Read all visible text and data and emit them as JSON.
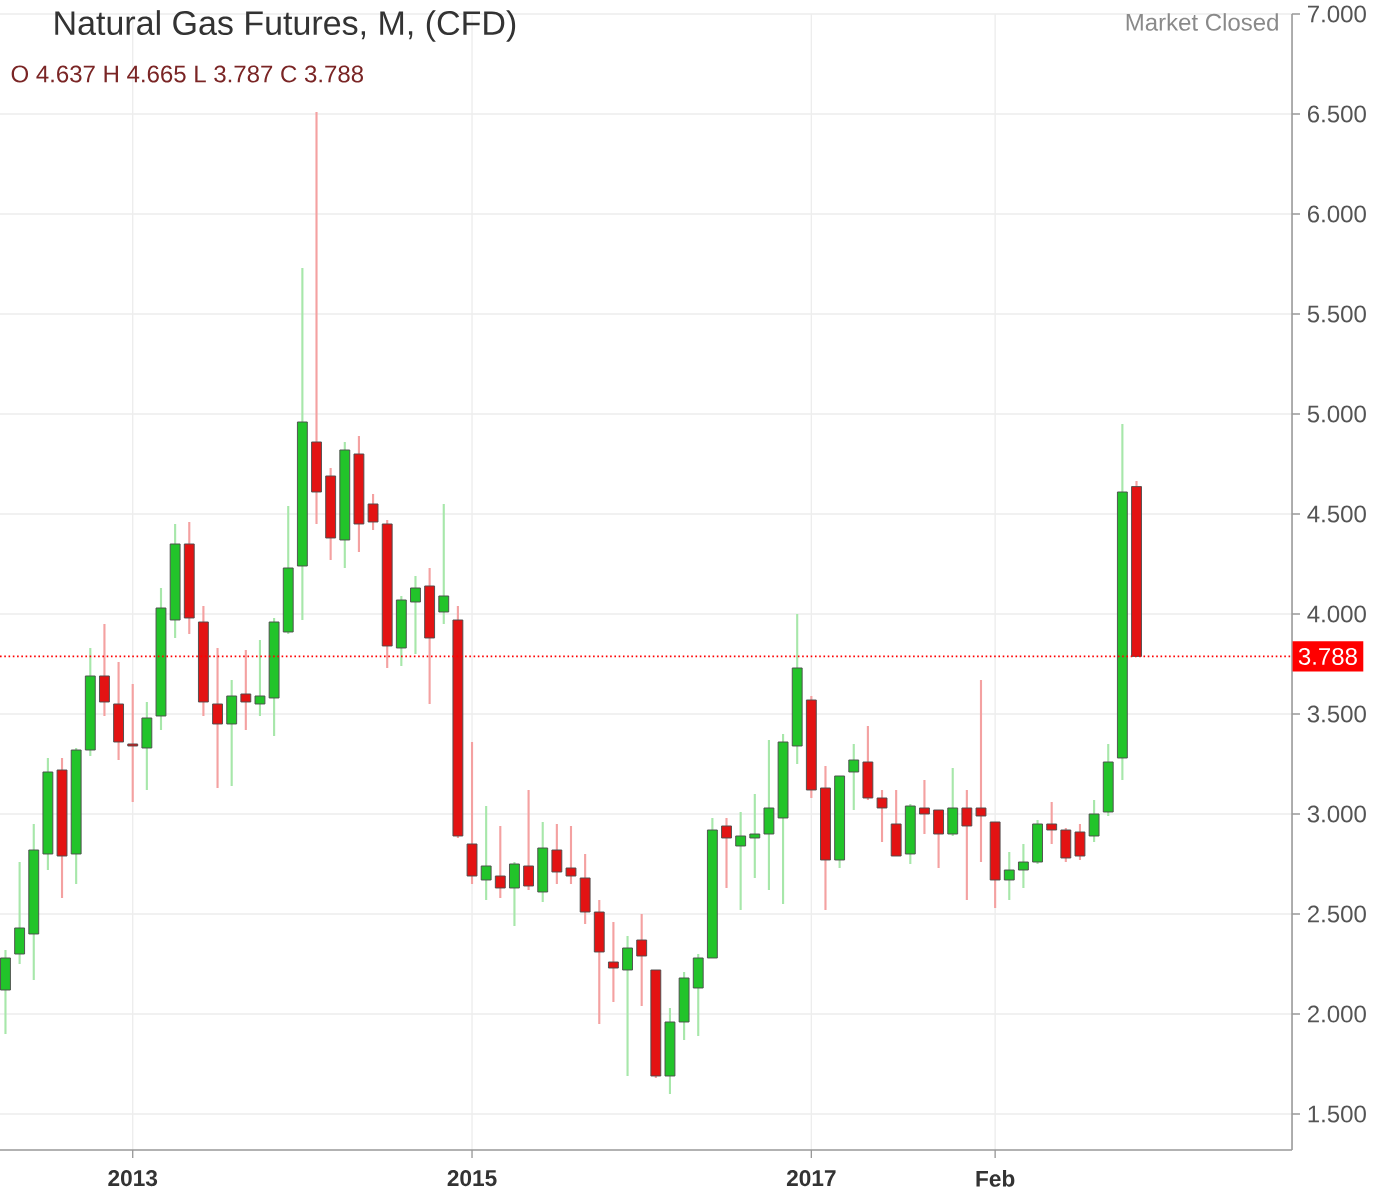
{
  "chart_data": {
    "type": "candlestick",
    "title": "Natural Gas Futures, M, (CFD)",
    "annotations": [
      "O 4.637 H 4.665 L 3.787 C 3.788",
      "Market Closed"
    ],
    "x": [
      "2012-04",
      "2012-05",
      "2012-06",
      "2012-07",
      "2012-08",
      "2012-09",
      "2012-10",
      "2012-11",
      "2012-12",
      "2013-01",
      "2013-02",
      "2013-03",
      "2013-04",
      "2013-05",
      "2013-06",
      "2013-07",
      "2013-08",
      "2013-09",
      "2013-10",
      "2013-11",
      "2013-12",
      "2014-01",
      "2014-02",
      "2014-03",
      "2014-04",
      "2014-05",
      "2014-06",
      "2014-07",
      "2014-08",
      "2014-09",
      "2014-10",
      "2014-11",
      "2014-12",
      "2015-01",
      "2015-02",
      "2015-03",
      "2015-04",
      "2015-05",
      "2015-06",
      "2015-07",
      "2015-08",
      "2015-09",
      "2015-10",
      "2015-11",
      "2015-12",
      "2016-01",
      "2016-02",
      "2016-03",
      "2016-04",
      "2016-05",
      "2016-06",
      "2016-07",
      "2016-08",
      "2016-09",
      "2016-10",
      "2016-11",
      "2016-12",
      "2017-01",
      "2017-02",
      "2017-03",
      "2017-04",
      "2017-05",
      "2017-06",
      "2017-07",
      "2017-08",
      "2017-09",
      "2017-10",
      "2017-11",
      "2017-12",
      "2018-01",
      "2018-02",
      "2018-03",
      "2018-04",
      "2018-05",
      "2018-06",
      "2018-07",
      "2018-08",
      "2018-09",
      "2018-10",
      "2018-11",
      "2018-12"
    ],
    "ohlc": [
      [
        2.12,
        2.32,
        1.9,
        2.28
      ],
      [
        2.3,
        2.76,
        2.25,
        2.43
      ],
      [
        2.4,
        2.95,
        2.17,
        2.82
      ],
      [
        2.8,
        3.28,
        2.72,
        3.21
      ],
      [
        3.22,
        3.28,
        2.58,
        2.79
      ],
      [
        2.8,
        3.33,
        2.65,
        3.32
      ],
      [
        3.32,
        3.83,
        3.29,
        3.69
      ],
      [
        3.69,
        3.95,
        3.49,
        3.56
      ],
      [
        3.55,
        3.76,
        3.27,
        3.36
      ],
      [
        3.35,
        3.65,
        3.06,
        3.34
      ],
      [
        3.33,
        3.56,
        3.12,
        3.48
      ],
      [
        3.49,
        4.13,
        3.42,
        4.03
      ],
      [
        3.97,
        4.45,
        3.88,
        4.35
      ],
      [
        4.35,
        4.46,
        3.9,
        3.98
      ],
      [
        3.96,
        4.04,
        3.49,
        3.56
      ],
      [
        3.55,
        3.83,
        3.13,
        3.45
      ],
      [
        3.45,
        3.67,
        3.14,
        3.59
      ],
      [
        3.6,
        3.82,
        3.42,
        3.56
      ],
      [
        3.55,
        3.87,
        3.49,
        3.59
      ],
      [
        3.58,
        3.98,
        3.39,
        3.96
      ],
      [
        3.91,
        4.54,
        3.9,
        4.23
      ],
      [
        4.24,
        5.73,
        3.97,
        4.96
      ],
      [
        4.86,
        6.51,
        4.45,
        4.61
      ],
      [
        4.69,
        4.73,
        4.27,
        4.38
      ],
      [
        4.37,
        4.86,
        4.23,
        4.82
      ],
      [
        4.8,
        4.89,
        4.31,
        4.45
      ],
      [
        4.55,
        4.6,
        4.42,
        4.46
      ],
      [
        4.45,
        4.47,
        3.73,
        3.84
      ],
      [
        3.83,
        4.09,
        3.74,
        4.07
      ],
      [
        4.06,
        4.19,
        3.8,
        4.13
      ],
      [
        4.14,
        4.23,
        3.55,
        3.88
      ],
      [
        4.01,
        4.55,
        3.95,
        4.09
      ],
      [
        3.97,
        4.04,
        2.88,
        2.89
      ],
      [
        2.85,
        3.36,
        2.65,
        2.69
      ],
      [
        2.67,
        3.04,
        2.57,
        2.74
      ],
      [
        2.69,
        2.94,
        2.58,
        2.63
      ],
      [
        2.63,
        2.76,
        2.44,
        2.75
      ],
      [
        2.74,
        3.12,
        2.62,
        2.64
      ],
      [
        2.61,
        2.96,
        2.56,
        2.83
      ],
      [
        2.82,
        2.95,
        2.65,
        2.71
      ],
      [
        2.73,
        2.94,
        2.65,
        2.69
      ],
      [
        2.68,
        2.8,
        2.45,
        2.51
      ],
      [
        2.51,
        2.57,
        1.95,
        2.31
      ],
      [
        2.26,
        2.46,
        2.06,
        2.23
      ],
      [
        2.22,
        2.39,
        1.69,
        2.33
      ],
      [
        2.37,
        2.5,
        2.04,
        2.29
      ],
      [
        2.22,
        2.22,
        1.68,
        1.69
      ],
      [
        1.69,
        2.03,
        1.6,
        1.96
      ],
      [
        1.96,
        2.21,
        1.87,
        2.18
      ],
      [
        2.13,
        2.3,
        1.89,
        2.28
      ],
      [
        2.28,
        2.98,
        2.28,
        2.92
      ],
      [
        2.94,
        2.98,
        2.63,
        2.88
      ],
      [
        2.84,
        3.01,
        2.52,
        2.89
      ],
      [
        2.88,
        3.1,
        2.68,
        2.9
      ],
      [
        2.9,
        3.37,
        2.62,
        3.03
      ],
      [
        2.98,
        3.4,
        2.55,
        3.36
      ],
      [
        3.34,
        4.0,
        3.25,
        3.73
      ],
      [
        3.57,
        3.59,
        3.08,
        3.12
      ],
      [
        3.13,
        3.24,
        2.52,
        2.77
      ],
      [
        2.77,
        3.19,
        2.73,
        3.19
      ],
      [
        3.21,
        3.35,
        3.02,
        3.27
      ],
      [
        3.26,
        3.44,
        3.07,
        3.08
      ],
      [
        3.08,
        3.12,
        2.86,
        3.03
      ],
      [
        2.95,
        3.12,
        2.79,
        2.79
      ],
      [
        2.8,
        3.05,
        2.75,
        3.04
      ],
      [
        3.03,
        3.17,
        2.9,
        3.0
      ],
      [
        3.02,
        3.02,
        2.73,
        2.9
      ],
      [
        2.9,
        3.23,
        2.89,
        3.03
      ],
      [
        3.03,
        3.12,
        2.57,
        2.94
      ],
      [
        3.03,
        3.67,
        2.76,
        2.99
      ],
      [
        2.96,
        2.96,
        2.53,
        2.67
      ],
      [
        2.67,
        2.81,
        2.57,
        2.72
      ],
      [
        2.72,
        2.85,
        2.63,
        2.76
      ],
      [
        2.76,
        2.97,
        2.75,
        2.95
      ],
      [
        2.95,
        3.06,
        2.85,
        2.92
      ],
      [
        2.92,
        2.93,
        2.76,
        2.78
      ],
      [
        2.91,
        2.95,
        2.77,
        2.79
      ],
      [
        2.89,
        3.07,
        2.86,
        3.0
      ],
      [
        3.01,
        3.35,
        2.99,
        3.26
      ],
      [
        3.28,
        4.95,
        3.17,
        4.61
      ],
      [
        4.637,
        4.665,
        3.787,
        3.788
      ]
    ],
    "colors": [
      "#22c42a",
      "#22c42a",
      "#22c42a",
      "#22c42a",
      "#e31313",
      "#22c42a",
      "#22c42a",
      "#e31313",
      "#e31313",
      "#e31313",
      "#22c42a",
      "#22c42a",
      "#22c42a",
      "#e31313",
      "#e31313",
      "#e31313",
      "#22c42a",
      "#e31313",
      "#22c42a",
      "#22c42a",
      "#22c42a",
      "#22c42a",
      "#e31313",
      "#e31313",
      "#22c42a",
      "#e31313",
      "#e31313",
      "#e31313",
      "#22c42a",
      "#22c42a",
      "#e31313",
      "#22c42a",
      "#e31313",
      "#e31313",
      "#22c42a",
      "#e31313",
      "#22c42a",
      "#e31313",
      "#22c42a",
      "#e31313",
      "#e31313",
      "#e31313",
      "#e31313",
      "#e31313",
      "#22c42a",
      "#e31313",
      "#e31313",
      "#22c42a",
      "#22c42a",
      "#22c42a",
      "#22c42a",
      "#e31313",
      "#22c42a",
      "#22c42a",
      "#22c42a",
      "#22c42a",
      "#22c42a",
      "#e31313",
      "#e31313",
      "#22c42a",
      "#22c42a",
      "#e31313",
      "#e31313",
      "#e31313",
      "#22c42a",
      "#e31313",
      "#e31313",
      "#22c42a",
      "#e31313",
      "#e31313",
      "#e31313",
      "#22c42a",
      "#22c42a",
      "#22c42a",
      "#e31313",
      "#e31313",
      "#e31313",
      "#22c42a",
      "#22c42a",
      "#22c42a",
      "#e31313"
    ],
    "xlim": [
      "2012-03-20",
      "2019-11-01"
    ],
    "xticks": [
      "2013",
      "2015",
      "2017",
      {
        "value": "2018-02",
        "label": "Feb"
      }
    ],
    "ylim": [
      1.32,
      7.0
    ],
    "yticks": [
      {
        "value": 1.5,
        "label": "1.500"
      },
      {
        "value": 2.0,
        "label": "2.000"
      },
      {
        "value": 2.5,
        "label": "2.500"
      },
      {
        "value": 3.0,
        "label": "3.000"
      },
      {
        "value": 3.5,
        "label": "3.500"
      },
      {
        "value": 4.0,
        "label": "4.000"
      },
      {
        "value": 4.5,
        "label": "4.500"
      },
      {
        "value": 5.0,
        "label": "5.000"
      },
      {
        "value": 5.5,
        "label": "5.500"
      },
      {
        "value": 6.0,
        "label": "6.000"
      },
      {
        "value": 6.5,
        "label": "6.500"
      },
      {
        "value": 7.0,
        "label": "7.000"
      }
    ],
    "grid": true,
    "ref_lines": [
      {
        "axis": "y",
        "value": 3.788,
        "label": "3.788",
        "color": "#ff0000",
        "line_style": "dotted"
      }
    ]
  }
}
